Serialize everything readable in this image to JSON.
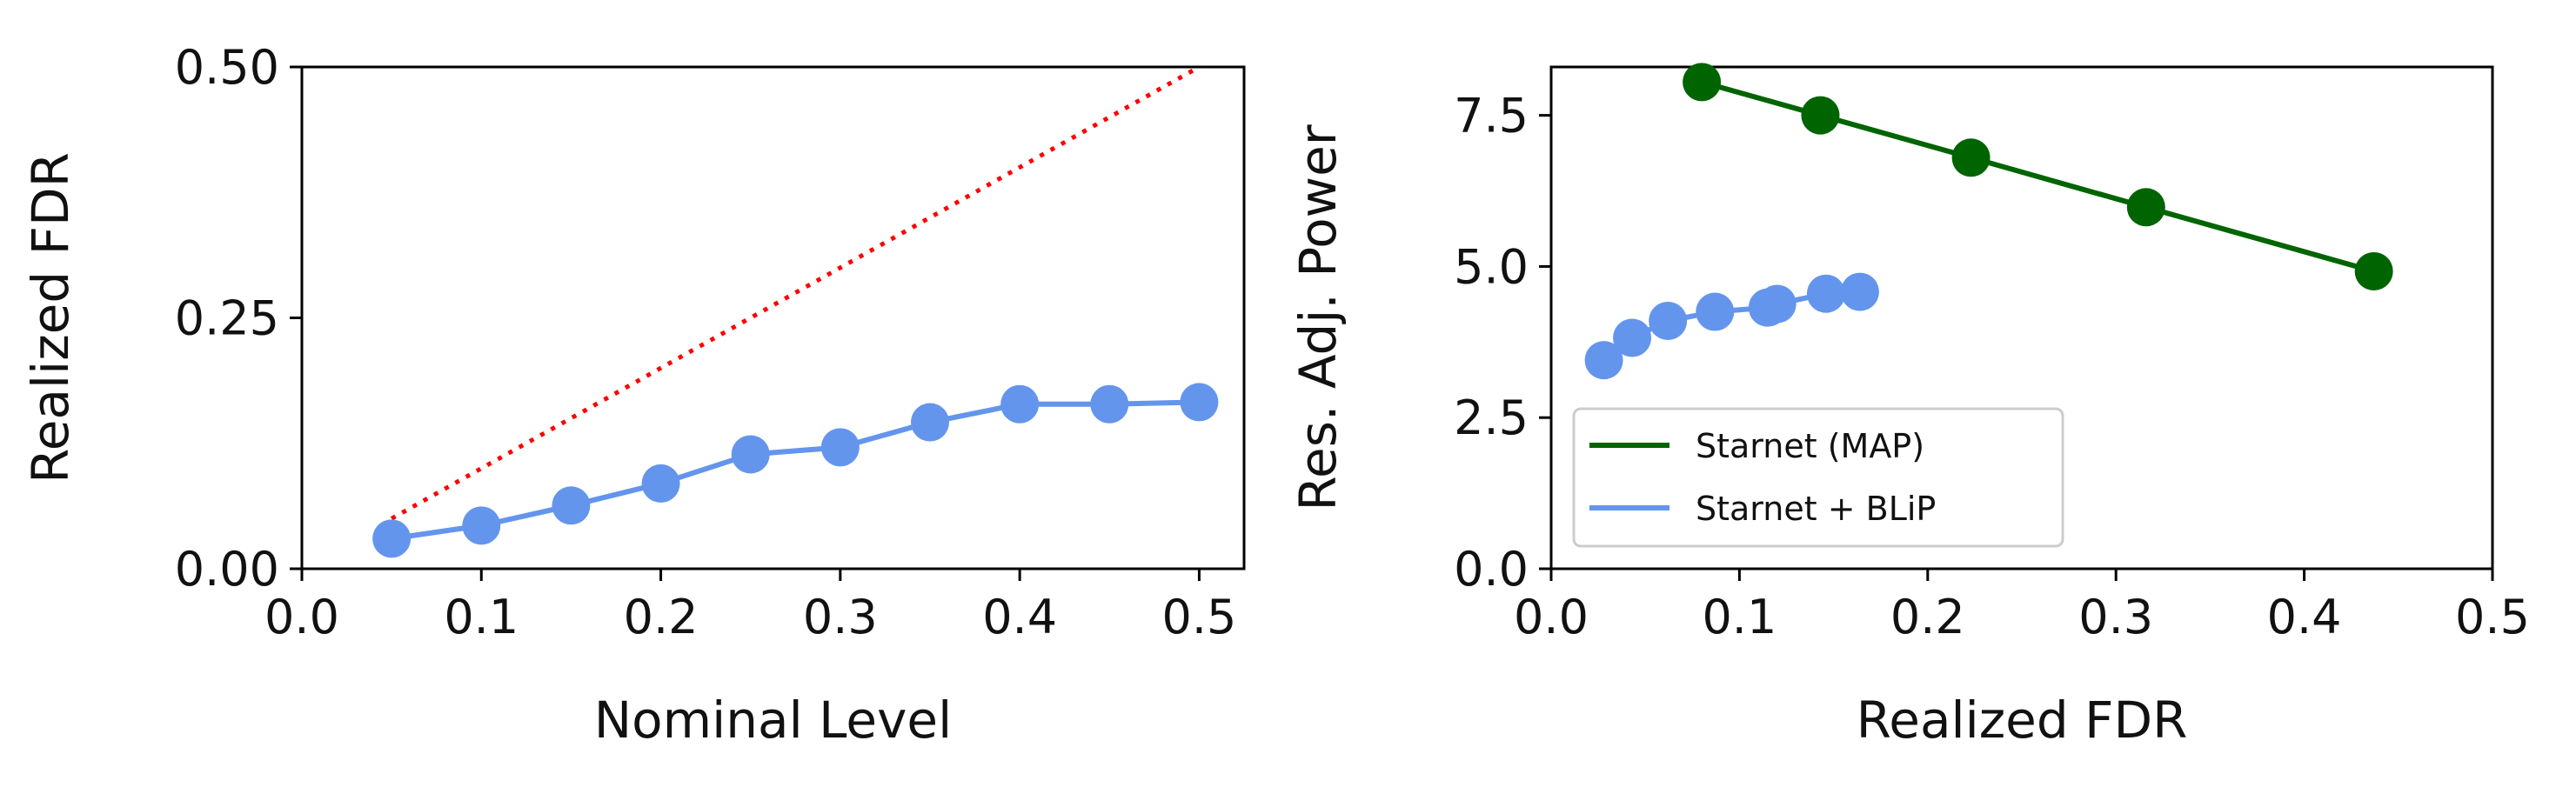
{
  "chart_data": [
    {
      "type": "line",
      "xlabel": "Nominal Level",
      "ylabel": "Realized FDR",
      "xlim": [
        0.0,
        0.525
      ],
      "ylim": [
        0.0,
        0.5
      ],
      "xticks": [
        0.0,
        0.1,
        0.2,
        0.3,
        0.4,
        0.5
      ],
      "xtick_labels": [
        "0.0",
        "0.1",
        "0.2",
        "0.3",
        "0.4",
        "0.5"
      ],
      "yticks": [
        0.0,
        0.25,
        0.5
      ],
      "ytick_labels": [
        "0.00",
        "0.25",
        "0.50"
      ],
      "reference_line": {
        "x": [
          0.05,
          0.5
        ],
        "y": [
          0.05,
          0.5
        ],
        "color": "#ff0000",
        "style": "dotted"
      },
      "series": [
        {
          "color": "#6495ed",
          "x": [
            0.05,
            0.1,
            0.15,
            0.2,
            0.25,
            0.3,
            0.35,
            0.4,
            0.45,
            0.5
          ],
          "y": [
            0.03,
            0.043,
            0.063,
            0.085,
            0.114,
            0.121,
            0.146,
            0.164,
            0.164,
            0.166
          ]
        }
      ]
    },
    {
      "type": "line",
      "xlabel": "Realized FDR",
      "ylabel": "Res. Adj. Power",
      "xlim": [
        0.0,
        0.5
      ],
      "ylim": [
        0.0,
        8.3
      ],
      "xticks": [
        0.0,
        0.1,
        0.2,
        0.3,
        0.4,
        0.5
      ],
      "xtick_labels": [
        "0.0",
        "0.1",
        "0.2",
        "0.3",
        "0.4",
        "0.5"
      ],
      "yticks": [
        0.0,
        2.5,
        5.0,
        7.5
      ],
      "ytick_labels": [
        "0.0",
        "2.5",
        "5.0",
        "7.5"
      ],
      "legend_position": "lower-left",
      "series": [
        {
          "name": "Starnet (MAP)",
          "color": "#006400",
          "x": [
            0.08,
            0.143,
            0.223,
            0.316,
            0.437
          ],
          "y": [
            8.05,
            7.5,
            6.8,
            5.98,
            4.92
          ]
        },
        {
          "name": "Starnet + BLiP",
          "color": "#6495ed",
          "x": [
            0.028,
            0.043,
            0.062,
            0.087,
            0.115,
            0.12,
            0.146,
            0.164
          ],
          "y": [
            3.45,
            3.82,
            4.1,
            4.25,
            4.32,
            4.38,
            4.55,
            4.58
          ]
        }
      ]
    }
  ]
}
